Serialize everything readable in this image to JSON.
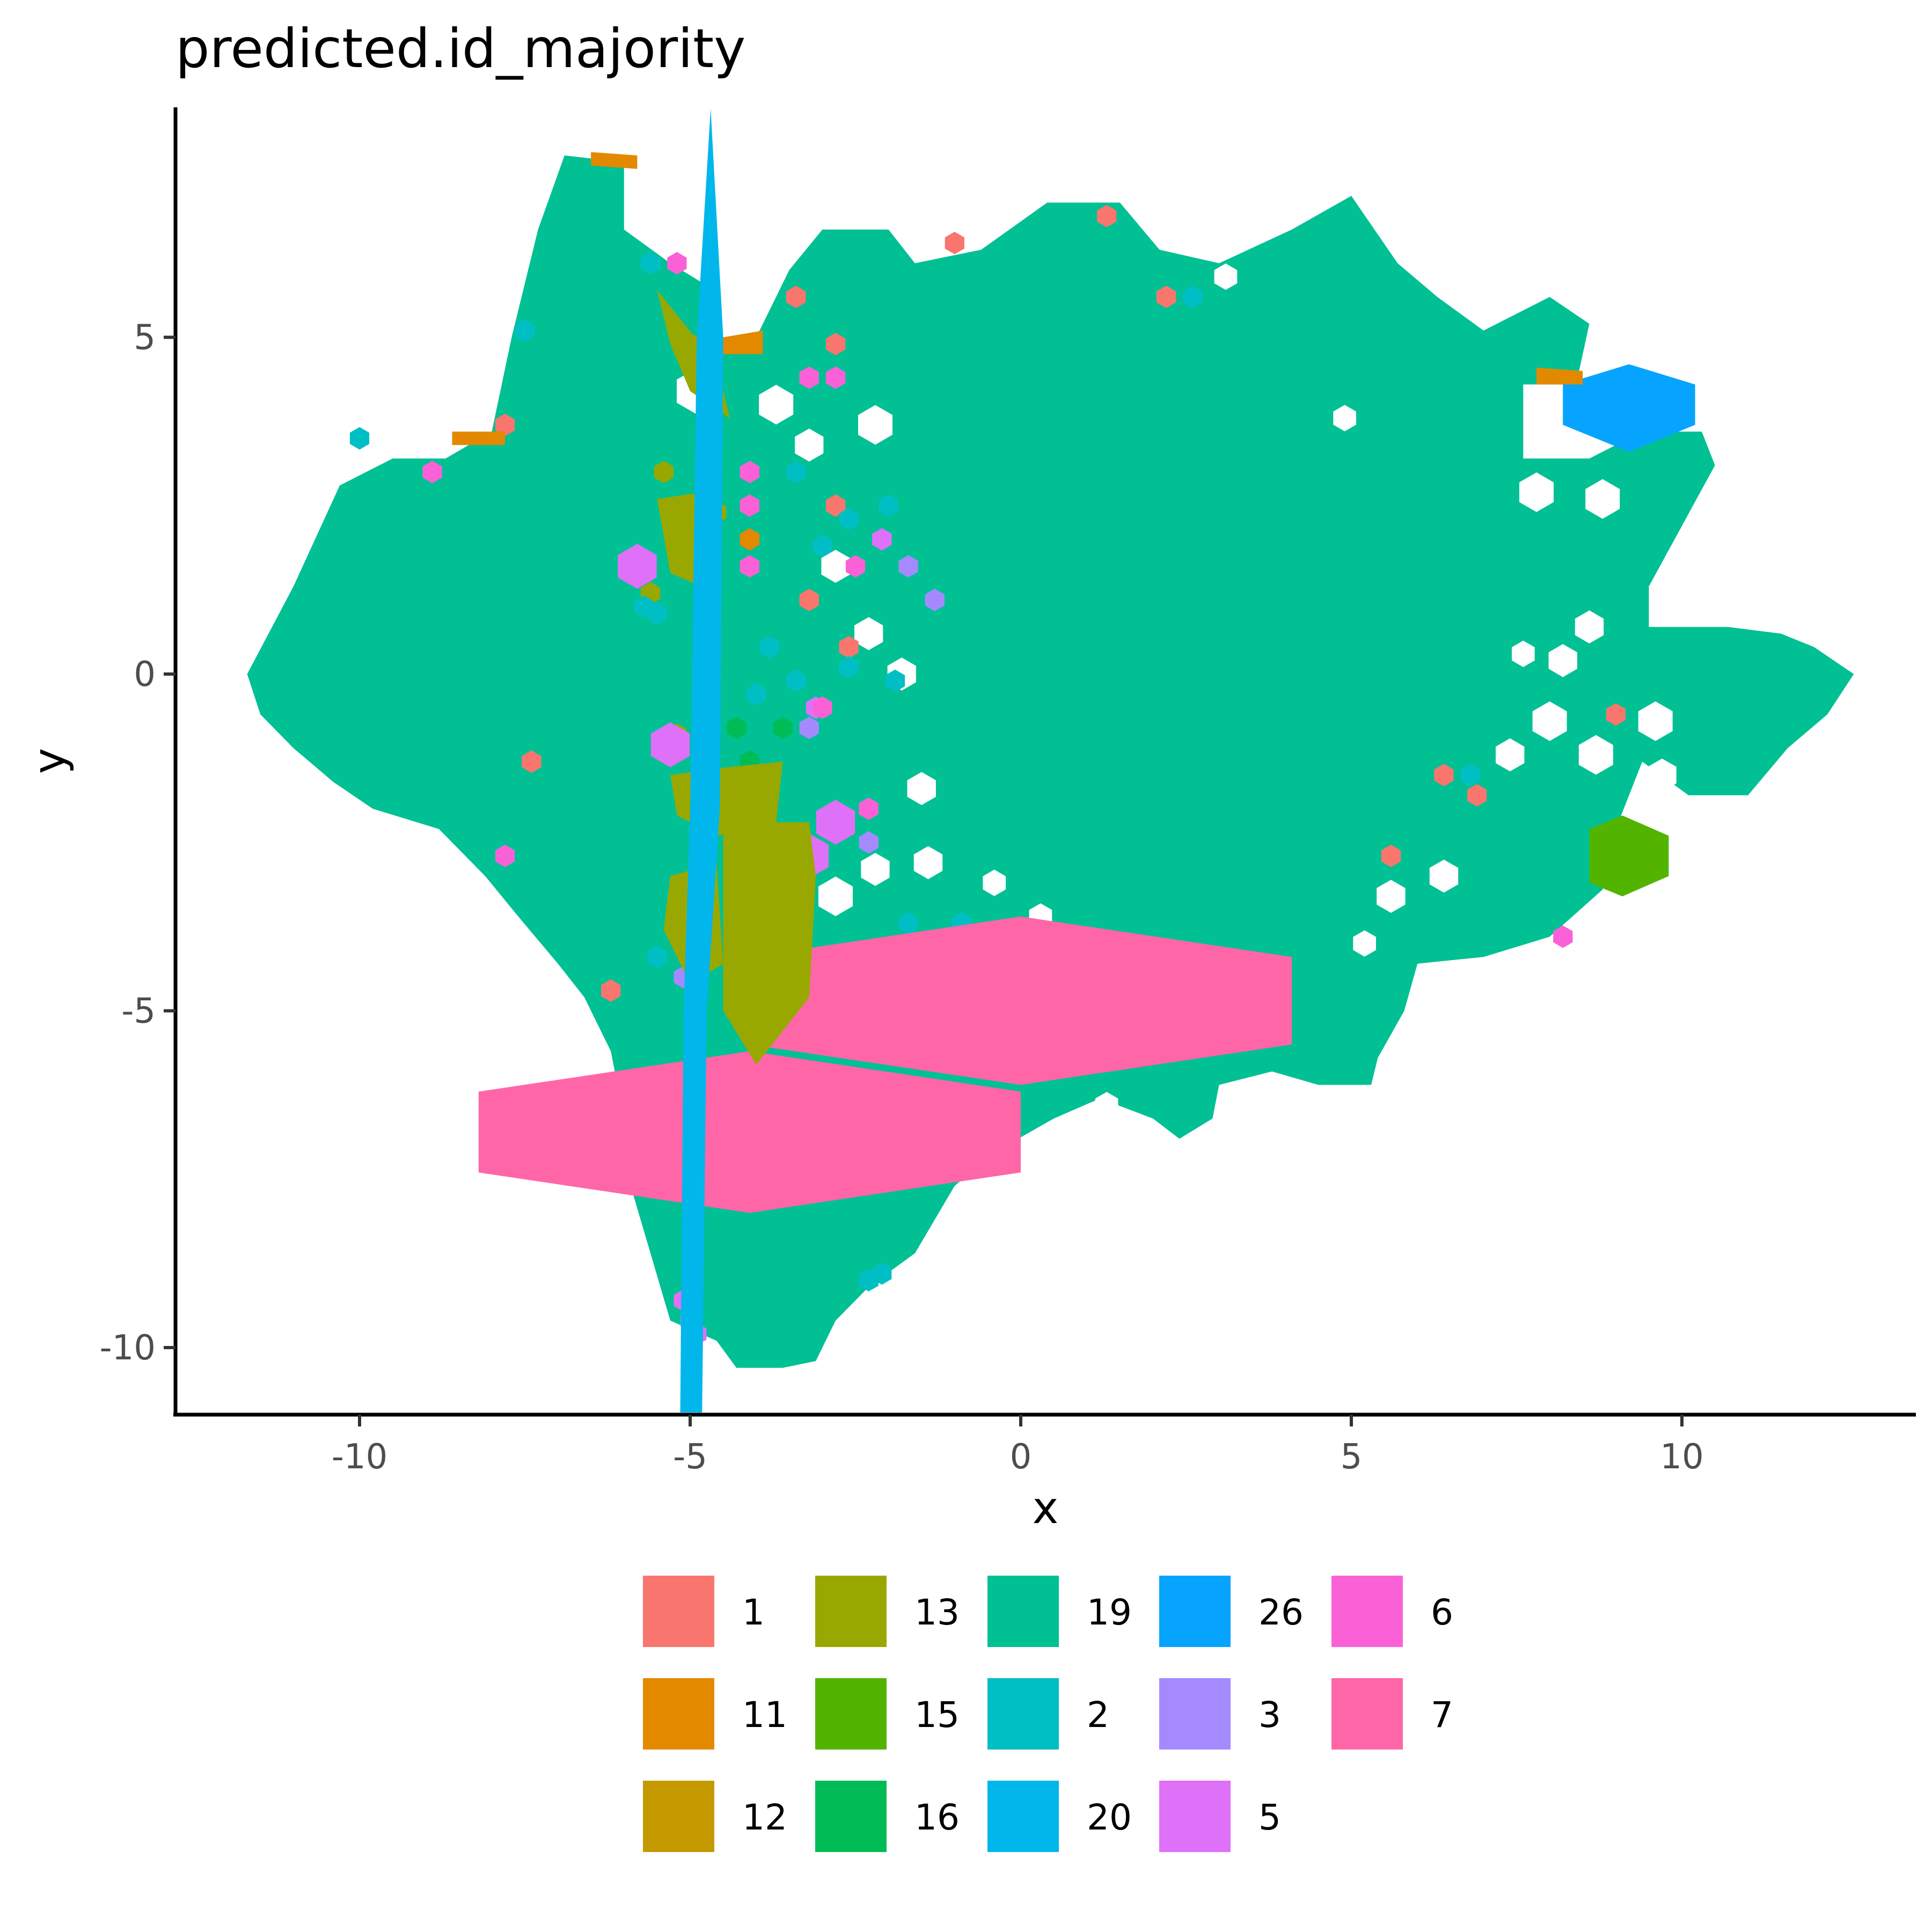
{
  "chart_data": {
    "type": "hexbin",
    "title": "predicted.id_majority",
    "xlabel": "x",
    "ylabel": "y",
    "xlim": [
      -12.7,
      13.5
    ],
    "ylim": [
      -11.0,
      8.5
    ],
    "xticks": [
      -10,
      -5,
      0,
      5,
      10
    ],
    "yticks": [
      -10,
      -5,
      0,
      5
    ],
    "grid": false,
    "legend_position": "bottom",
    "background_class": "19",
    "legend": [
      {
        "label": "1",
        "color": "#F8766D"
      },
      {
        "label": "11",
        "color": "#E38900"
      },
      {
        "label": "12",
        "color": "#C49A00"
      },
      {
        "label": "13",
        "color": "#99A800"
      },
      {
        "label": "15",
        "color": "#53B400"
      },
      {
        "label": "16",
        "color": "#00BC56"
      },
      {
        "label": "19",
        "color": "#00C094"
      },
      {
        "label": "2",
        "color": "#00BFC4"
      },
      {
        "label": "20",
        "color": "#00B6EB"
      },
      {
        "label": "26",
        "color": "#06A4FF"
      },
      {
        "label": "3",
        "color": "#A58AFF"
      },
      {
        "label": "5",
        "color": "#DF70F8"
      },
      {
        "label": "6",
        "color": "#FB61D7"
      },
      {
        "label": "7",
        "color": "#FF66A8"
      }
    ],
    "main_cloud": [
      [
        -11.7,
        0.0
      ],
      [
        -11.0,
        1.3
      ],
      [
        -10.3,
        2.8
      ],
      [
        -9.5,
        3.2
      ],
      [
        -8.7,
        3.2
      ],
      [
        -8.0,
        3.6
      ],
      [
        -7.7,
        5.0
      ],
      [
        -7.3,
        6.6
      ],
      [
        -6.9,
        7.7
      ],
      [
        -6.0,
        7.6
      ],
      [
        -6.0,
        6.6
      ],
      [
        -5.3,
        6.1
      ],
      [
        -4.8,
        5.8
      ],
      [
        -4.5,
        5.0
      ],
      [
        -4.0,
        5.0
      ],
      [
        -3.5,
        6.0
      ],
      [
        -3.0,
        6.6
      ],
      [
        -2.0,
        6.6
      ],
      [
        -1.6,
        6.1
      ],
      [
        -0.6,
        6.3
      ],
      [
        0.4,
        7.0
      ],
      [
        1.5,
        7.0
      ],
      [
        2.1,
        6.3
      ],
      [
        3.0,
        6.1
      ],
      [
        4.1,
        6.6
      ],
      [
        5.0,
        7.1
      ],
      [
        5.7,
        6.1
      ],
      [
        6.3,
        5.6
      ],
      [
        7.0,
        5.1
      ],
      [
        8.0,
        5.6
      ],
      [
        8.6,
        5.2
      ],
      [
        8.4,
        4.3
      ],
      [
        7.6,
        4.3
      ],
      [
        7.6,
        3.2
      ],
      [
        8.6,
        3.2
      ],
      [
        9.4,
        3.6
      ],
      [
        10.3,
        3.6
      ],
      [
        10.5,
        3.1
      ],
      [
        10.0,
        2.2
      ],
      [
        9.5,
        1.3
      ],
      [
        9.5,
        0.7
      ],
      [
        10.7,
        0.7
      ],
      [
        11.5,
        0.6
      ],
      [
        12.0,
        0.4
      ],
      [
        12.6,
        0.0
      ],
      [
        12.2,
        -0.6
      ],
      [
        11.6,
        -1.1
      ],
      [
        11.0,
        -1.8
      ],
      [
        10.1,
        -1.8
      ],
      [
        9.4,
        -1.3
      ],
      [
        9.0,
        -2.3
      ],
      [
        8.8,
        -3.2
      ],
      [
        8.0,
        -3.9
      ],
      [
        7.0,
        -4.2
      ],
      [
        6.0,
        -4.3
      ],
      [
        5.8,
        -5.0
      ],
      [
        5.4,
        -5.7
      ],
      [
        5.3,
        -6.1
      ],
      [
        4.5,
        -6.1
      ],
      [
        3.8,
        -5.9
      ],
      [
        3.0,
        -6.1
      ],
      [
        2.9,
        -6.6
      ],
      [
        2.4,
        -6.9
      ],
      [
        2.0,
        -6.6
      ],
      [
        1.2,
        -6.3
      ],
      [
        0.5,
        -6.6
      ],
      [
        -0.4,
        -7.1
      ],
      [
        -1.0,
        -7.6
      ],
      [
        -1.6,
        -8.6
      ],
      [
        -2.3,
        -9.1
      ],
      [
        -2.8,
        -9.6
      ],
      [
        -3.1,
        -10.2
      ],
      [
        -3.6,
        -10.3
      ],
      [
        -4.3,
        -10.3
      ],
      [
        -4.6,
        -9.9
      ],
      [
        -5.3,
        -9.6
      ],
      [
        -5.6,
        -8.6
      ],
      [
        -5.9,
        -7.6
      ],
      [
        -6.0,
        -6.6
      ],
      [
        -6.2,
        -5.6
      ],
      [
        -6.6,
        -4.8
      ],
      [
        -7.0,
        -4.3
      ],
      [
        -7.6,
        -3.6
      ],
      [
        -8.1,
        -3.0
      ],
      [
        -8.8,
        -2.3
      ],
      [
        -9.8,
        -2.0
      ],
      [
        -10.4,
        -1.6
      ],
      [
        -11.0,
        -1.1
      ],
      [
        -11.5,
        -0.6
      ]
    ],
    "holes": [
      [
        -4.9,
        4.2,
        0.35
      ],
      [
        -3.7,
        4.0,
        0.3
      ],
      [
        -3.2,
        3.4,
        0.25
      ],
      [
        -2.2,
        3.7,
        0.3
      ],
      [
        -2.8,
        1.6,
        0.25
      ],
      [
        -2.3,
        0.6,
        0.25
      ],
      [
        -1.8,
        0.0,
        0.25
      ],
      [
        -1.5,
        -1.7,
        0.25
      ],
      [
        -2.2,
        -2.9,
        0.25
      ],
      [
        -2.8,
        -3.3,
        0.3
      ],
      [
        -1.4,
        -2.8,
        0.25
      ],
      [
        -0.4,
        -3.1,
        0.2
      ],
      [
        0.3,
        -3.6,
        0.2
      ],
      [
        4.9,
        3.8,
        0.2
      ],
      [
        3.1,
        5.9,
        0.2
      ],
      [
        8.8,
        2.6,
        0.3
      ],
      [
        7.8,
        2.7,
        0.3
      ],
      [
        9.3,
        4.1,
        0.35
      ],
      [
        8.6,
        0.7,
        0.25
      ],
      [
        8.2,
        0.2,
        0.25
      ],
      [
        7.6,
        0.3,
        0.2
      ],
      [
        8.0,
        -0.7,
        0.3
      ],
      [
        8.7,
        -1.2,
        0.3
      ],
      [
        7.4,
        -1.2,
        0.25
      ],
      [
        9.6,
        -0.7,
        0.3
      ],
      [
        9.7,
        -1.5,
        0.25
      ],
      [
        6.4,
        -3.0,
        0.25
      ],
      [
        5.6,
        -3.3,
        0.25
      ],
      [
        5.2,
        -4.0,
        0.2
      ],
      [
        1.3,
        -6.4,
        0.2
      ]
    ],
    "regions": [
      {
        "class": "7",
        "points": [
          [
            -4.1,
            -4.2
          ],
          [
            0.0,
            -3.6
          ],
          [
            4.1,
            -4.2
          ],
          [
            4.1,
            -5.5
          ],
          [
            0.0,
            -6.1
          ],
          [
            -4.1,
            -5.5
          ]
        ]
      },
      {
        "class": "7",
        "points": [
          [
            -8.2,
            -6.2
          ],
          [
            -4.1,
            -5.6
          ],
          [
            0.0,
            -6.2
          ],
          [
            0.0,
            -7.4
          ],
          [
            -4.1,
            -8.0
          ],
          [
            -8.2,
            -7.4
          ]
        ]
      },
      {
        "class": "26",
        "points": [
          [
            8.2,
            4.3
          ],
          [
            9.2,
            4.6
          ],
          [
            10.2,
            4.3
          ],
          [
            10.2,
            3.7
          ],
          [
            9.2,
            3.3
          ],
          [
            8.2,
            3.7
          ]
        ]
      },
      {
        "class": "15",
        "points": [
          [
            8.6,
            -2.3
          ],
          [
            9.1,
            -2.1
          ],
          [
            9.8,
            -2.4
          ],
          [
            9.8,
            -3.0
          ],
          [
            9.1,
            -3.3
          ],
          [
            8.6,
            -3.1
          ]
        ]
      },
      {
        "class": "13",
        "points": [
          [
            -4.5,
            -2.2
          ],
          [
            -3.2,
            -2.2
          ],
          [
            -3.1,
            -3.0
          ],
          [
            -3.2,
            -4.8
          ],
          [
            -4.0,
            -5.8
          ],
          [
            -4.5,
            -5.0
          ]
        ]
      },
      {
        "class": "13",
        "points": [
          [
            -5.3,
            4.9
          ],
          [
            -5.5,
            5.7
          ],
          [
            -4.6,
            4.6
          ],
          [
            -4.4,
            3.8
          ],
          [
            -5.0,
            4.2
          ]
        ]
      },
      {
        "class": "13",
        "points": [
          [
            -5.5,
            2.6
          ],
          [
            -4.8,
            2.7
          ],
          [
            -4.6,
            1.2
          ],
          [
            -5.3,
            1.5
          ]
        ]
      },
      {
        "class": "13",
        "points": [
          [
            -5.3,
            -1.5
          ],
          [
            -4.6,
            -1.4
          ],
          [
            -3.6,
            -1.3
          ],
          [
            -3.7,
            -2.2
          ],
          [
            -4.6,
            -2.4
          ],
          [
            -5.2,
            -2.1
          ]
        ]
      },
      {
        "class": "13",
        "points": [
          [
            -5.3,
            -3.0
          ],
          [
            -4.6,
            -2.8
          ],
          [
            -4.5,
            -4.3
          ],
          [
            -5.0,
            -4.6
          ],
          [
            -5.4,
            -3.8
          ]
        ]
      },
      {
        "class": "11",
        "points": [
          [
            -6.5,
            7.75
          ],
          [
            -5.8,
            7.7
          ],
          [
            -5.8,
            7.5
          ],
          [
            -6.5,
            7.55
          ]
        ]
      },
      {
        "class": "11",
        "points": [
          [
            -4.8,
            4.95
          ],
          [
            -3.9,
            5.1
          ],
          [
            -3.9,
            4.75
          ],
          [
            -4.8,
            4.75
          ]
        ]
      },
      {
        "class": "11",
        "points": [
          [
            -8.6,
            3.6
          ],
          [
            -7.8,
            3.6
          ],
          [
            -7.8,
            3.4
          ],
          [
            -8.6,
            3.4
          ]
        ]
      },
      {
        "class": "11",
        "points": [
          [
            7.8,
            4.55
          ],
          [
            8.5,
            4.5
          ],
          [
            8.5,
            4.3
          ],
          [
            7.8,
            4.3
          ]
        ]
      },
      {
        "class": "20",
        "points": [
          [
            -4.69,
            8.4
          ],
          [
            -4.5,
            5.0
          ],
          [
            -4.55,
            -2.0
          ],
          [
            -4.75,
            -5.0
          ],
          [
            -4.82,
            -11.0
          ],
          [
            -5.15,
            -11.0
          ],
          [
            -5.1,
            -5.0
          ],
          [
            -5.0,
            -2.0
          ],
          [
            -4.9,
            5.0
          ]
        ]
      }
    ],
    "hexes": [
      [
        "1",
        -1.0,
        6.4,
        0.17
      ],
      [
        "1",
        1.3,
        6.8,
        0.17
      ],
      [
        "1",
        2.2,
        5.6,
        0.17
      ],
      [
        "1",
        -3.4,
        5.6,
        0.17
      ],
      [
        "1",
        -2.8,
        4.9,
        0.17
      ],
      [
        "1",
        -7.8,
        3.7,
        0.17
      ],
      [
        "1",
        -2.8,
        2.5,
        0.17
      ],
      [
        "1",
        -3.2,
        1.1,
        0.17
      ],
      [
        "1",
        -2.6,
        0.4,
        0.17
      ],
      [
        "1",
        -7.4,
        -1.3,
        0.17
      ],
      [
        "1",
        -6.2,
        -4.7,
        0.17
      ],
      [
        "1",
        9.0,
        -0.6,
        0.17
      ],
      [
        "1",
        6.4,
        -1.5,
        0.17
      ],
      [
        "1",
        6.9,
        -1.8,
        0.17
      ],
      [
        "1",
        5.6,
        -2.7,
        0.17
      ],
      [
        "11",
        -4.1,
        2.0,
        0.17
      ],
      [
        "11",
        -5.0,
        4.9,
        0.17
      ],
      [
        "12",
        -5.0,
        -1.8,
        0.15
      ],
      [
        "13",
        -5.4,
        3.0,
        0.17
      ],
      [
        "13",
        -5.0,
        1.9,
        0.17
      ],
      [
        "13",
        -5.6,
        1.2,
        0.17
      ],
      [
        "13",
        -4.6,
        2.4,
        0.17
      ],
      [
        "13",
        -5.2,
        -0.9,
        0.17
      ],
      [
        "16",
        -4.3,
        -0.8,
        0.17
      ],
      [
        "16",
        -3.6,
        -0.8,
        0.17
      ],
      [
        "16",
        -4.1,
        -1.3,
        0.17
      ],
      [
        "2",
        -7.5,
        5.1,
        0.17
      ],
      [
        "2",
        -10.0,
        3.5,
        0.17
      ],
      [
        "2",
        -5.6,
        6.1,
        0.17
      ],
      [
        "2",
        2.6,
        5.6,
        0.17
      ],
      [
        "2",
        -3.4,
        3.0,
        0.17
      ],
      [
        "2",
        -2.6,
        2.3,
        0.17
      ],
      [
        "2",
        -2.0,
        2.5,
        0.17
      ],
      [
        "2",
        -3.0,
        1.9,
        0.17
      ],
      [
        "2",
        -3.8,
        0.4,
        0.17
      ],
      [
        "2",
        -3.4,
        -0.1,
        0.17
      ],
      [
        "2",
        -2.6,
        0.1,
        0.17
      ],
      [
        "2",
        -1.9,
        -0.1,
        0.17
      ],
      [
        "2",
        -4.0,
        -0.3,
        0.17
      ],
      [
        "2",
        -5.2,
        -3.3,
        0.17
      ],
      [
        "2",
        -1.7,
        -3.7,
        0.17
      ],
      [
        "2",
        -0.9,
        -3.7,
        0.17
      ],
      [
        "2",
        -5.5,
        -4.2,
        0.17
      ],
      [
        "2",
        6.8,
        -1.5,
        0.17
      ],
      [
        "2",
        -2.1,
        -8.9,
        0.17
      ],
      [
        "2",
        -2.3,
        -9.0,
        0.17
      ],
      [
        "2",
        -5.7,
        1.0,
        0.17
      ],
      [
        "2",
        -5.5,
        0.9,
        0.17
      ],
      [
        "3",
        -3.2,
        -0.8,
        0.17
      ],
      [
        "3",
        -2.3,
        -2.5,
        0.17
      ],
      [
        "3",
        -1.7,
        1.6,
        0.17
      ],
      [
        "3",
        -1.3,
        1.1,
        0.17
      ],
      [
        "3",
        -5.1,
        -4.5,
        0.17
      ],
      [
        "3",
        -5.0,
        -9.6,
        0.17
      ],
      [
        "5",
        -5.8,
        1.6,
        0.34
      ],
      [
        "5",
        -5.3,
        -1.05,
        0.34
      ],
      [
        "5",
        -2.8,
        -2.2,
        0.34
      ],
      [
        "5",
        -3.2,
        -2.7,
        0.34
      ],
      [
        "5",
        -2.1,
        2.0,
        0.17
      ],
      [
        "5",
        -5.1,
        -9.3,
        0.17
      ],
      [
        "5",
        -4.9,
        -9.8,
        0.17
      ],
      [
        "5",
        -3.1,
        -0.5,
        0.17
      ],
      [
        "6",
        -5.2,
        6.1,
        0.17
      ],
      [
        "6",
        -3.2,
        4.4,
        0.17
      ],
      [
        "6",
        -2.8,
        4.4,
        0.17
      ],
      [
        "6",
        -4.1,
        3.0,
        0.17
      ],
      [
        "6",
        -4.1,
        2.5,
        0.17
      ],
      [
        "6",
        -5.0,
        2.3,
        0.17
      ],
      [
        "6",
        -4.1,
        1.6,
        0.17
      ],
      [
        "6",
        -2.5,
        1.6,
        0.17
      ],
      [
        "6",
        -8.9,
        3.0,
        0.17
      ],
      [
        "6",
        -7.8,
        -2.7,
        0.17
      ],
      [
        "6",
        -4.1,
        -2.7,
        0.17
      ],
      [
        "6",
        -2.3,
        -2.0,
        0.17
      ],
      [
        "6",
        -3.0,
        -0.5,
        0.17
      ],
      [
        "6",
        8.2,
        -3.9,
        0.17
      ]
    ]
  }
}
